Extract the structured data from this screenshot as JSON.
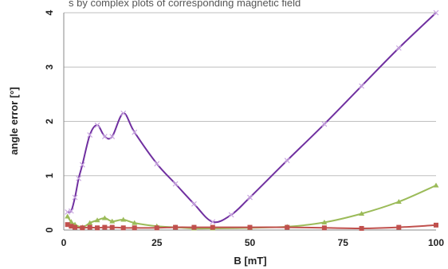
{
  "caption_text": "s by complex plots of corresponding magnetic field",
  "chart_data": {
    "type": "scatter",
    "title": "",
    "xlabel": "B [mT]",
    "ylabel": "angle error [°]",
    "xlim": [
      0,
      100
    ],
    "ylim": [
      0,
      4
    ],
    "x_ticks": [
      "0",
      "25",
      "50",
      "75",
      "100"
    ],
    "y_ticks": [
      "0",
      "1",
      "2",
      "3",
      "4"
    ],
    "grid": "horizontal",
    "legend": "none",
    "series": [
      {
        "color": "#7030a0",
        "marker": "x",
        "points": [
          [
            1,
            0.33
          ],
          [
            2,
            0.35
          ],
          [
            3,
            0.6
          ],
          [
            4,
            0.95
          ],
          [
            5,
            1.2
          ],
          [
            7,
            1.75
          ],
          [
            9,
            1.93
          ],
          [
            11,
            1.72
          ],
          [
            13,
            1.72
          ],
          [
            16,
            2.15
          ],
          [
            19,
            1.8
          ],
          [
            25,
            1.22
          ],
          [
            30,
            0.85
          ],
          [
            35,
            0.48
          ],
          [
            40,
            0.15
          ],
          [
            45,
            0.28
          ],
          [
            50,
            0.6
          ],
          [
            60,
            1.28
          ],
          [
            70,
            1.95
          ],
          [
            80,
            2.65
          ],
          [
            90,
            3.35
          ],
          [
            100,
            4.0
          ]
        ]
      },
      {
        "color": "#9bbb59",
        "marker": "triangle",
        "points": [
          [
            1,
            0.25
          ],
          [
            2,
            0.15
          ],
          [
            3,
            0.1
          ],
          [
            5,
            0.05
          ],
          [
            7,
            0.13
          ],
          [
            9,
            0.18
          ],
          [
            11,
            0.22
          ],
          [
            13,
            0.16
          ],
          [
            16,
            0.19
          ],
          [
            19,
            0.13
          ],
          [
            25,
            0.07
          ],
          [
            30,
            0.05
          ],
          [
            35,
            0.03
          ],
          [
            40,
            0.03
          ],
          [
            50,
            0.04
          ],
          [
            60,
            0.06
          ],
          [
            70,
            0.14
          ],
          [
            80,
            0.3
          ],
          [
            90,
            0.52
          ],
          [
            100,
            0.82
          ]
        ]
      },
      {
        "color": "#c0504d",
        "marker": "square",
        "points": [
          [
            1,
            0.1
          ],
          [
            2,
            0.07
          ],
          [
            3,
            0.05
          ],
          [
            5,
            0.04
          ],
          [
            7,
            0.05
          ],
          [
            9,
            0.04
          ],
          [
            11,
            0.05
          ],
          [
            13,
            0.05
          ],
          [
            16,
            0.04
          ],
          [
            19,
            0.04
          ],
          [
            25,
            0.04
          ],
          [
            30,
            0.05
          ],
          [
            35,
            0.05
          ],
          [
            40,
            0.05
          ],
          [
            50,
            0.05
          ],
          [
            60,
            0.05
          ],
          [
            70,
            0.04
          ],
          [
            80,
            0.03
          ],
          [
            90,
            0.05
          ],
          [
            100,
            0.09
          ]
        ]
      }
    ]
  }
}
